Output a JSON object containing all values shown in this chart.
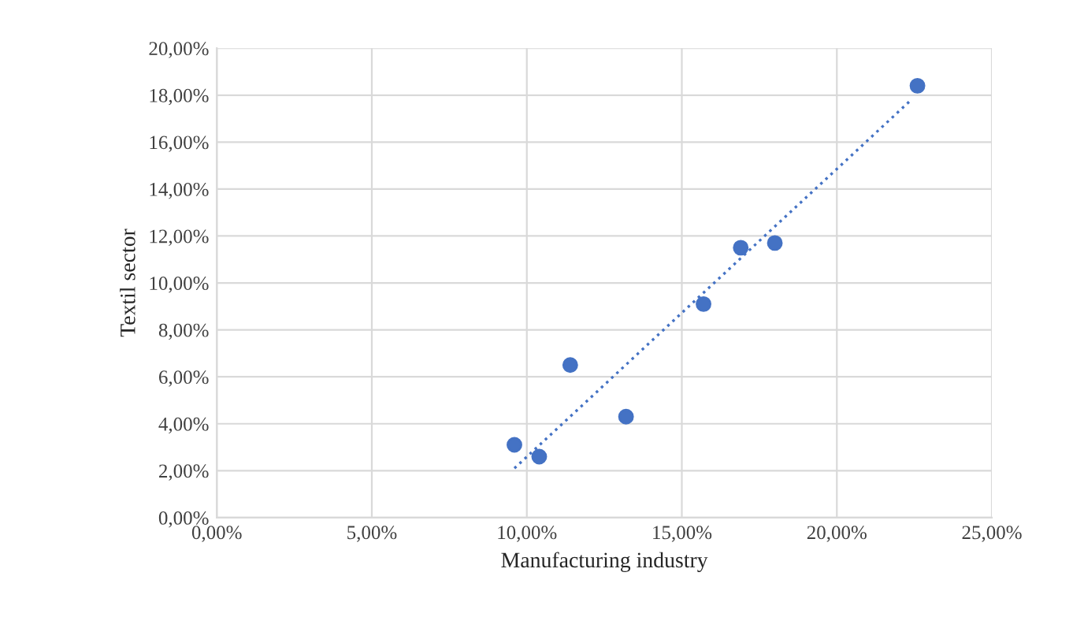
{
  "chart_data": {
    "type": "scatter",
    "xlabel": "Manufacturing industry",
    "ylabel": "Textil sector",
    "xlim": [
      0,
      25
    ],
    "ylim": [
      0,
      20
    ],
    "xticks": [
      {
        "value": 0,
        "label": "0,00%"
      },
      {
        "value": 5,
        "label": "5,00%"
      },
      {
        "value": 10,
        "label": "10,00%"
      },
      {
        "value": 15,
        "label": "15,00%"
      },
      {
        "value": 20,
        "label": "20,00%"
      },
      {
        "value": 25,
        "label": "25,00%"
      }
    ],
    "yticks": [
      {
        "value": 0,
        "label": "0,00%"
      },
      {
        "value": 2,
        "label": "2,00%"
      },
      {
        "value": 4,
        "label": "4,00%"
      },
      {
        "value": 6,
        "label": "6,00%"
      },
      {
        "value": 8,
        "label": "8,00%"
      },
      {
        "value": 10,
        "label": "10,00%"
      },
      {
        "value": 12,
        "label": "12,00%"
      },
      {
        "value": 14,
        "label": "14,00%"
      },
      {
        "value": 16,
        "label": "16,00%"
      },
      {
        "value": 18,
        "label": "18,00%"
      },
      {
        "value": 20,
        "label": "20,00%"
      }
    ],
    "grid": true,
    "marker": "circle",
    "series": [
      {
        "color": "#4472c4",
        "x": [
          9.6,
          10.4,
          11.4,
          13.2,
          15.7,
          16.9,
          18.0,
          22.6
        ],
        "values": [
          3.1,
          2.6,
          6.5,
          4.3,
          9.1,
          11.5,
          11.7,
          18.4
        ]
      },
      {
        "type": "line",
        "color": "#4472c4",
        "line_style": "dotted",
        "marker": "none",
        "x": [
          9.6,
          22.4
        ],
        "values": [
          2.1,
          17.8
        ]
      }
    ]
  }
}
